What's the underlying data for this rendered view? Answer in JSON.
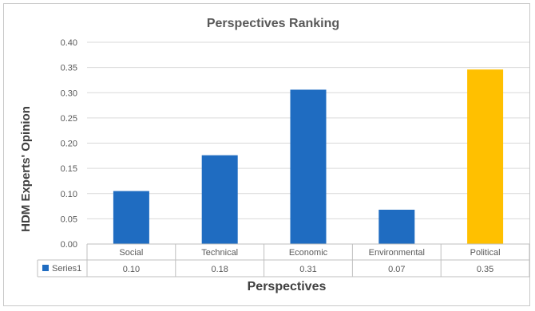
{
  "chart_data": {
    "type": "bar",
    "title": "Perspectives Ranking",
    "xlabel": "Perspectives",
    "ylabel": "HDM Experts' Opinion",
    "categories": [
      "Social",
      "Technical",
      "Economic",
      "Environmental",
      "Political"
    ],
    "series": [
      {
        "name": "Series1",
        "values": [
          0.105,
          0.176,
          0.306,
          0.068,
          0.346
        ],
        "table_labels": [
          "0.10",
          "0.18",
          "0.31",
          "0.07",
          "0.35"
        ]
      }
    ],
    "ylim": [
      0,
      0.4
    ],
    "yticks": [
      "0.00",
      "0.05",
      "0.10",
      "0.15",
      "0.20",
      "0.25",
      "0.30",
      "0.35",
      "0.40"
    ],
    "grid": true,
    "data_table": true,
    "colors": {
      "default_bar": "#1f6cc1",
      "highlight_bar": "#ffc000",
      "highlight_category": "Political",
      "grid": "#d9d9d9"
    }
  }
}
